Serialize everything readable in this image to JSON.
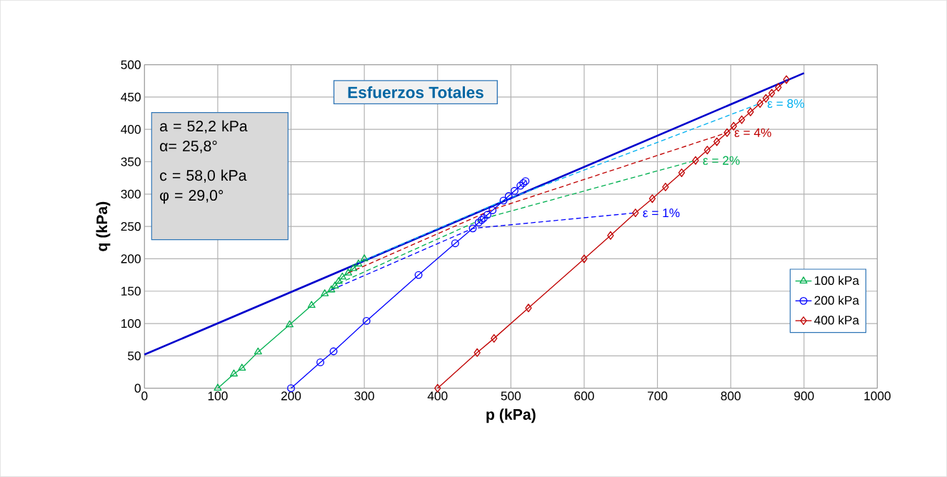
{
  "chart_data": {
    "type": "line",
    "title": "Esfuerzos Totales",
    "xlabel": "p (kPa)",
    "ylabel": "q (kPa)",
    "xlim": [
      0,
      1000
    ],
    "ylim": [
      0,
      500
    ],
    "xticks": [
      0,
      100,
      200,
      300,
      400,
      500,
      600,
      700,
      800,
      900,
      1000
    ],
    "yticks": [
      0,
      50,
      100,
      150,
      200,
      250,
      300,
      350,
      400,
      450,
      500
    ],
    "grid": true,
    "legend": "right",
    "series": [
      {
        "name": "100 kPa",
        "color": "#00b050",
        "marker": "triangle",
        "x": [
          100,
          122,
          133,
          155,
          198,
          228,
          246,
          255,
          260,
          265,
          270,
          278,
          285,
          292,
          300
        ],
        "values": [
          0,
          22,
          31,
          56,
          98,
          128,
          146,
          152,
          158,
          165,
          172,
          178,
          185,
          192,
          200
        ]
      },
      {
        "name": "200 kPa",
        "color": "#0000ff",
        "marker": "circle",
        "x": [
          200,
          240,
          258,
          303,
          374,
          424,
          448,
          456,
          460,
          463,
          468,
          475,
          490,
          497,
          505,
          513,
          517,
          520
        ],
        "values": [
          0,
          40,
          57,
          104,
          175,
          224,
          247,
          256,
          260,
          263,
          268,
          275,
          290,
          297,
          305,
          313,
          317,
          320
        ]
      },
      {
        "name": "400 kPa",
        "color": "#c00000",
        "marker": "diamond",
        "x": [
          400,
          454,
          477,
          524,
          600,
          636,
          670,
          693,
          711,
          733,
          752,
          768,
          781,
          795,
          804,
          815,
          827,
          840,
          848,
          856,
          865,
          876
        ],
        "values": [
          0,
          55,
          77,
          124,
          200,
          236,
          271,
          293,
          311,
          333,
          352,
          368,
          381,
          395,
          405,
          415,
          427,
          440,
          448,
          456,
          465,
          477
        ]
      },
      {
        "color": "#0000cc",
        "marker": "none",
        "x": [
          0,
          900
        ],
        "values": [
          52,
          487
        ]
      },
      {
        "color": "#0000ff",
        "marker": "none",
        "line_style": "dashed",
        "x": [
          255,
          448,
          670
        ],
        "values": [
          152,
          247,
          271
        ]
      },
      {
        "color": "#00b050",
        "marker": "none",
        "line_style": "dashed",
        "x": [
          265,
          462,
          752
        ],
        "values": [
          162,
          262,
          352
        ]
      },
      {
        "color": "#c00000",
        "marker": "none",
        "line_style": "dashed",
        "x": [
          278,
          477,
          795
        ],
        "values": [
          178,
          277,
          395
        ]
      },
      {
        "color": "#00b0f0",
        "marker": "none",
        "line_style": "dashed",
        "x": [
          292,
          490,
          840
        ],
        "values": [
          194,
          290,
          440
        ]
      }
    ],
    "annotations": [
      "a = 52,2 kPa",
      "α= 25,8°",
      "c = 58,0 kPa",
      "φ  = 29,0°",
      {
        "text": "ε = 1%",
        "x": 670,
        "y": 271
      },
      {
        "text": "ε = 2%",
        "x": 752,
        "y": 352
      },
      {
        "text": "ε = 4%",
        "x": 795,
        "y": 395
      },
      {
        "text": "ε = 8%",
        "x": 840,
        "y": 440
      }
    ]
  }
}
